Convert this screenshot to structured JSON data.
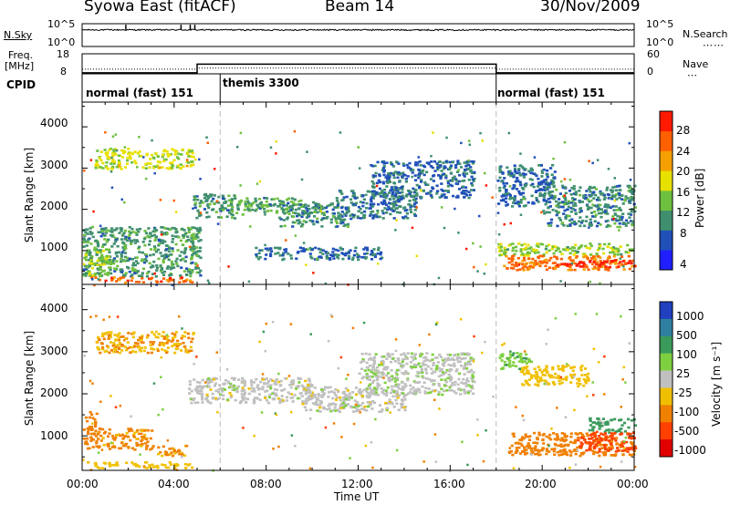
{
  "header": {
    "title_left": "Syowa East (fitACF)",
    "title_center": "Beam 14",
    "title_right": "30/Nov/2009"
  },
  "panel_labels": {
    "nsky": "N.Sky",
    "nsky_top_tick": "10^5",
    "nsky_bottom_tick": "10^0",
    "nsearch": "N.Search",
    "nsearch_top_tick": "10^5",
    "nsearch_bottom_tick": "10^0",
    "freq": "Freq.",
    "freq_unit": "[MHz]",
    "freq_top_tick": "18",
    "freq_bottom_tick": "8",
    "nave": "Nave",
    "nave_top_tick": "60",
    "nave_bottom_tick": "0",
    "cpid": "CPID"
  },
  "cpid_segments": [
    {
      "label": "normal (fast) 151",
      "start_hour": 0,
      "end_hour": 6
    },
    {
      "label": "themis 3300",
      "start_hour": 6,
      "end_hour": 18
    },
    {
      "label": "normal (fast) 151",
      "start_hour": 18,
      "end_hour": 24
    }
  ],
  "axes": {
    "x_label": "Time UT",
    "x_ticks": [
      "00:00",
      "04:00",
      "08:00",
      "12:00",
      "16:00",
      "20:00",
      "00:00"
    ],
    "y_label": "Slant Range [km]",
    "y_ticks": [
      "1000",
      "2000",
      "3000",
      "4000"
    ]
  },
  "colorbars": {
    "power": {
      "label": "Power [dB]",
      "ticks": [
        "4",
        "8",
        "12",
        "16",
        "20",
        "24",
        "28"
      ],
      "colors": [
        "#1f1fff",
        "#2050b8",
        "#3f8f6f",
        "#6fc03f",
        "#e8e000",
        "#f5a000",
        "#ff6000",
        "#ff1a00"
      ]
    },
    "velocity": {
      "label": "Velocity [m s⁻¹]",
      "ticks": [
        "1000",
        "500",
        "100",
        "25",
        "-25",
        "-100",
        "-500",
        "-1000"
      ],
      "colors": [
        "#2040c0",
        "#2e7fa0",
        "#3a9a5a",
        "#7fd040",
        "#c0c0c0",
        "#f0c000",
        "#f08000",
        "#ff4000",
        "#e00000"
      ]
    }
  },
  "chart_data": [
    {
      "type": "line",
      "title": "N.Sky / N.Search",
      "x_range_hours": [
        0,
        24
      ],
      "y_scale": "log",
      "ylim": [
        1,
        100000
      ],
      "series": [
        {
          "name": "N.Sky",
          "style": "solid"
        },
        {
          "name": "N.Search",
          "style": "dotted"
        }
      ]
    },
    {
      "type": "line",
      "title": "Freq. / Nave",
      "x_range_hours": [
        0,
        24
      ],
      "series": [
        {
          "name": "Freq.",
          "style": "solid",
          "x": [
            0,
            5,
            5,
            18,
            18,
            24
          ],
          "y": [
            8.5,
            8.5,
            12.8,
            12.8,
            8.5,
            8.5
          ]
        },
        {
          "name": "Nave",
          "style": "dotted",
          "x": [
            0,
            5,
            5,
            18,
            18,
            24
          ],
          "y": [
            14,
            14,
            17,
            17,
            14,
            14
          ]
        }
      ]
    },
    {
      "type": "heatmap",
      "title": "",
      "quantity": "Power [dB]",
      "xlabel": "Time UT",
      "ylabel": "Slant Range [km]",
      "x_range_hours": [
        0,
        24
      ],
      "ylim": [
        180,
        4600
      ],
      "clim": [
        0,
        30
      ],
      "regions": [
        {
          "t0": 0.0,
          "t1": 5.1,
          "r0": 400,
          "r1": 1600,
          "value": 10
        },
        {
          "t0": 0.1,
          "t1": 1.2,
          "r0": 400,
          "r1": 1100,
          "value": 14
        },
        {
          "t0": 0.3,
          "t1": 4.8,
          "r0": 250,
          "r1": 380,
          "value": 24
        },
        {
          "t0": 0.5,
          "t1": 4.8,
          "r0": 3000,
          "r1": 3500,
          "value": 16
        },
        {
          "t0": 4.8,
          "t1": 6.6,
          "r0": 1800,
          "r1": 2400,
          "value": 10
        },
        {
          "t0": 6.3,
          "t1": 9.5,
          "r0": 1900,
          "r1": 2300,
          "value": 12
        },
        {
          "t0": 8.5,
          "t1": 11.5,
          "r0": 1600,
          "r1": 2200,
          "value": 9
        },
        {
          "t0": 11.0,
          "t1": 14.5,
          "r0": 1800,
          "r1": 2500,
          "value": 8
        },
        {
          "t0": 12.5,
          "t1": 17.0,
          "r0": 2300,
          "r1": 3200,
          "value": 7
        },
        {
          "t0": 7.5,
          "t1": 13.0,
          "r0": 800,
          "r1": 1100,
          "value": 7
        },
        {
          "t0": 18.0,
          "t1": 20.5,
          "r0": 2100,
          "r1": 3100,
          "value": 7
        },
        {
          "t0": 20.0,
          "t1": 24.0,
          "r0": 1600,
          "r1": 2600,
          "value": 9
        },
        {
          "t0": 18.0,
          "t1": 24.0,
          "r0": 900,
          "r1": 1200,
          "value": 14
        },
        {
          "t0": 18.3,
          "t1": 24.0,
          "r0": 550,
          "r1": 900,
          "value": 23
        },
        {
          "t0": 20.5,
          "t1": 24.0,
          "r0": 620,
          "r1": 800,
          "value": 28
        }
      ]
    },
    {
      "type": "heatmap",
      "title": "",
      "quantity": "Velocity [m s⁻¹]",
      "xlabel": "Time UT",
      "ylabel": "Slant Range [km]",
      "x_range_hours": [
        0,
        24
      ],
      "ylim": [
        180,
        4600
      ],
      "clim": [
        -1000,
        1000
      ],
      "regions": [
        {
          "t0": 0.0,
          "t1": 0.6,
          "r0": 700,
          "r1": 1600,
          "value": -400
        },
        {
          "t0": 0.6,
          "t1": 3.0,
          "r0": 700,
          "r1": 1200,
          "value": -120
        },
        {
          "t0": 0.2,
          "t1": 4.8,
          "r0": 250,
          "r1": 400,
          "value": -60
        },
        {
          "t0": 3.0,
          "t1": 4.5,
          "r0": 550,
          "r1": 800,
          "value": -110
        },
        {
          "t0": 0.5,
          "t1": 4.8,
          "r0": 3000,
          "r1": 3500,
          "value": -90
        },
        {
          "t0": 4.5,
          "t1": 10.0,
          "r0": 1800,
          "r1": 2400,
          "value": 0
        },
        {
          "t0": 9.5,
          "t1": 14.0,
          "r0": 1600,
          "r1": 2200,
          "value": 0
        },
        {
          "t0": 12.0,
          "t1": 17.0,
          "r0": 2000,
          "r1": 3000,
          "value": 10
        },
        {
          "t0": 11.3,
          "t1": 12.0,
          "r0": 1700,
          "r1": 1800,
          "value": 60
        },
        {
          "t0": 18.0,
          "t1": 19.5,
          "r0": 2600,
          "r1": 3000,
          "value": 80
        },
        {
          "t0": 19.0,
          "t1": 22.0,
          "r0": 2200,
          "r1": 2700,
          "value": -60
        },
        {
          "t0": 22.0,
          "t1": 24.0,
          "r0": 1100,
          "r1": 1450,
          "value": 350
        },
        {
          "t0": 18.5,
          "t1": 24.0,
          "r0": 550,
          "r1": 1100,
          "value": -130
        },
        {
          "t0": 21.5,
          "t1": 24.0,
          "r0": 650,
          "r1": 1100,
          "value": -650
        }
      ]
    }
  ]
}
